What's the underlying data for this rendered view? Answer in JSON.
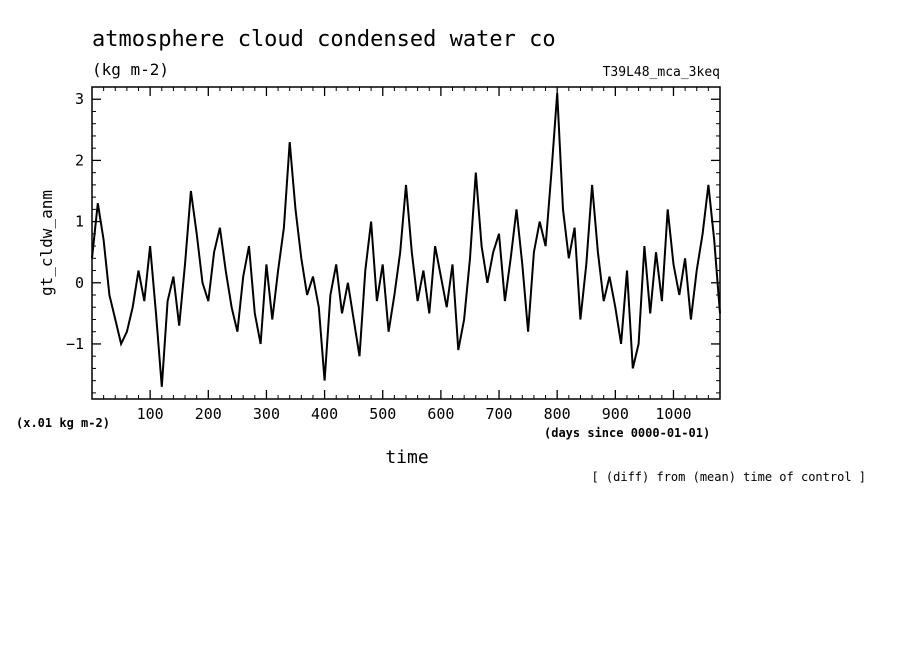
{
  "chart_data": {
    "type": "line",
    "title": "atmosphere cloud condensed water co",
    "units": "(kg m-2)",
    "experiment": "T39L48_mca_3keq",
    "ylabel": "gt_cldw_anm",
    "yscale_note": "(x.01 kg m-2)",
    "xlabel": "time",
    "xunits": "(days since 0000-01-01)",
    "footnote": "[ (diff) from (mean) time of control ]",
    "xlim": [
      0,
      1080
    ],
    "ylim": [
      -1.9,
      3.2
    ],
    "x_ticks": [
      100,
      200,
      300,
      400,
      500,
      600,
      700,
      800,
      900,
      1000
    ],
    "y_ticks": [
      -1,
      0,
      1,
      2,
      3
    ],
    "grid": false,
    "series": [
      {
        "x": [
          0,
          10,
          20,
          30,
          40,
          50,
          60,
          70,
          80,
          90,
          100,
          110,
          120,
          130,
          140,
          150,
          160,
          170,
          180,
          190,
          200,
          210,
          220,
          230,
          240,
          250,
          260,
          270,
          280,
          290,
          300,
          310,
          320,
          330,
          340,
          350,
          360,
          370,
          380,
          390,
          400,
          410,
          420,
          430,
          440,
          450,
          460,
          470,
          480,
          490,
          500,
          510,
          520,
          530,
          540,
          550,
          560,
          570,
          580,
          590,
          600,
          610,
          620,
          630,
          640,
          650,
          660,
          670,
          680,
          690,
          700,
          710,
          720,
          730,
          740,
          750,
          760,
          770,
          780,
          790,
          800,
          810,
          820,
          830,
          840,
          850,
          860,
          870,
          880,
          890,
          900,
          910,
          920,
          930,
          940,
          950,
          960,
          970,
          980,
          990,
          1000,
          1010,
          1020,
          1030,
          1040,
          1050,
          1060,
          1070,
          1080
        ],
        "values": [
          0.4,
          1.3,
          0.7,
          -0.2,
          -0.6,
          -1.0,
          -0.8,
          -0.4,
          0.2,
          -0.3,
          0.6,
          -0.5,
          -1.7,
          -0.3,
          0.1,
          -0.7,
          0.3,
          1.5,
          0.8,
          0.0,
          -0.3,
          0.5,
          0.9,
          0.2,
          -0.4,
          -0.8,
          0.1,
          0.6,
          -0.5,
          -1.0,
          0.3,
          -0.6,
          0.2,
          0.9,
          2.3,
          1.2,
          0.4,
          -0.2,
          0.1,
          -0.4,
          -1.6,
          -0.2,
          0.3,
          -0.5,
          0.0,
          -0.6,
          -1.2,
          0.2,
          1.0,
          -0.3,
          0.3,
          -0.8,
          -0.2,
          0.5,
          1.6,
          0.5,
          -0.3,
          0.2,
          -0.5,
          0.6,
          0.1,
          -0.4,
          0.3,
          -1.1,
          -0.6,
          0.4,
          1.8,
          0.6,
          0.0,
          0.5,
          0.8,
          -0.3,
          0.4,
          1.2,
          0.3,
          -0.8,
          0.5,
          1.0,
          0.6,
          1.8,
          3.1,
          1.2,
          0.4,
          0.9,
          -0.6,
          0.3,
          1.6,
          0.5,
          -0.3,
          0.1,
          -0.4,
          -1.0,
          0.2,
          -1.4,
          -1.0,
          0.6,
          -0.5,
          0.5,
          -0.3,
          1.2,
          0.3,
          -0.2,
          0.4,
          -0.6,
          0.2,
          0.8,
          1.6,
          0.7,
          -0.5
        ]
      }
    ]
  }
}
